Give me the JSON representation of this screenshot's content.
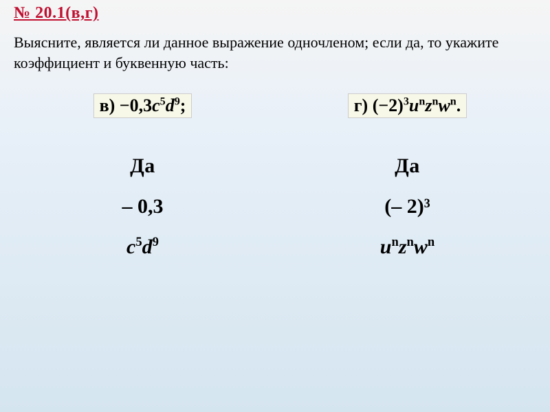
{
  "header": {
    "text": "№ 20.1(в,г)",
    "color": "#c01030"
  },
  "question": {
    "text": "Выясните, является ли данное выражение одночленом; если да, то укажите коэффициент и буквенную часть:",
    "fontsize": 22,
    "color": "#000000"
  },
  "problems": {
    "left": {
      "label_prefix": "в) ",
      "expression_html": "−0,3<span class=\"italic\">c</span><sup>5</sup><span class=\"italic\">d</span><sup>9</sup>;",
      "answer": "Да",
      "coefficient": "– 0,3",
      "letter_part_html": "c<sup><span class=\"upright\">5</span></sup>d<sup><span class=\"upright\">9</span></sup>"
    },
    "right": {
      "label_prefix": "г) ",
      "expression_html": "(−2)<sup>3</sup><span class=\"italic\">u<sup>n</sup>z<sup>n</sup>w<sup>n</sup></span>.",
      "answer": "Да",
      "coefficient": "(– 2)³",
      "letter_part_html": "u<sup>n</sup>z<sup>n</sup>w<sup>n</sup>"
    }
  },
  "styling": {
    "background_gradient": [
      "#f5f5f5",
      "#e8f0f8",
      "#d5e5f0"
    ],
    "header_bg": "#ffffff",
    "label_bg": "#f8f8e8",
    "text_color": "#000000",
    "answer_fontsize": 30,
    "label_fontsize": 26
  }
}
